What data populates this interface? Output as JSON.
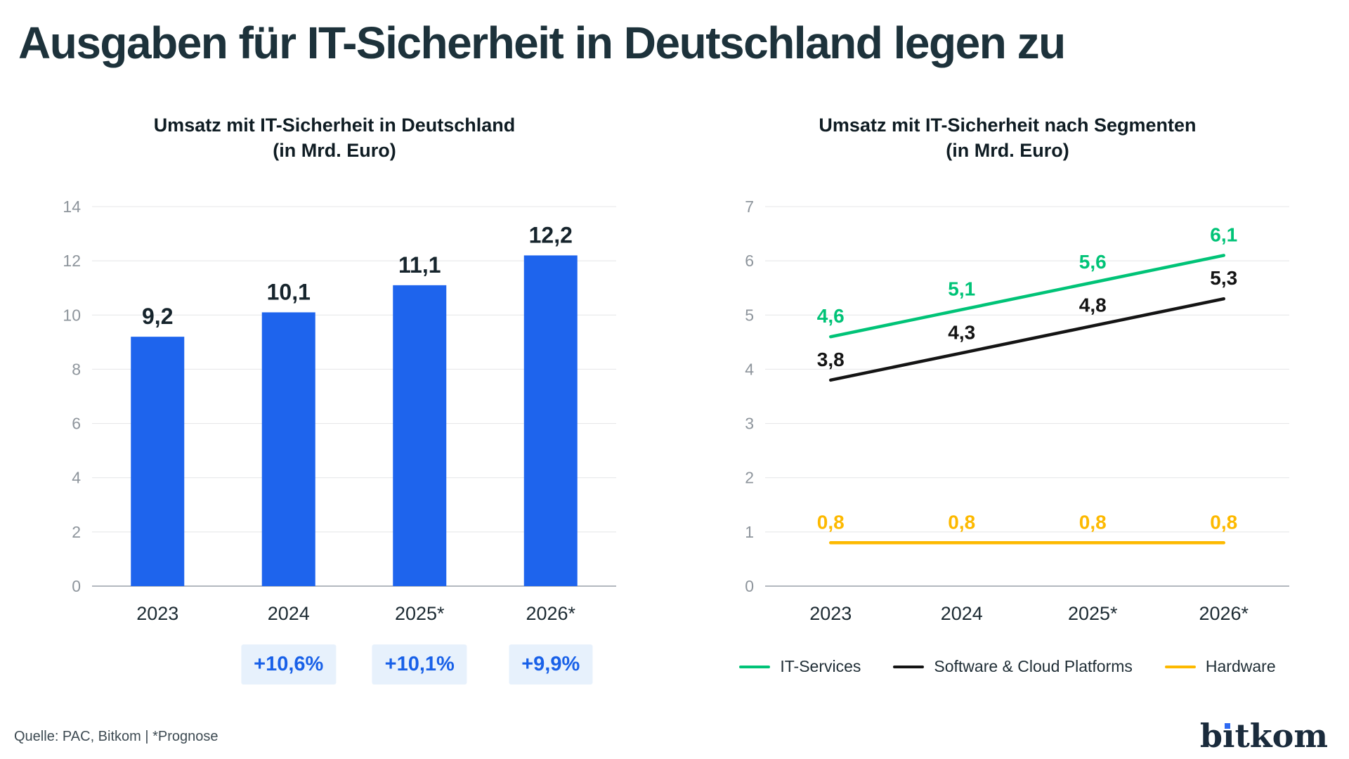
{
  "page": {
    "title": "Ausgaben für IT-Sicherheit in Deutschland legen zu",
    "source_note": "Quelle: PAC, Bitkom | *Prognose",
    "logo": {
      "label": "bitkom",
      "pre": "b",
      "i_stem": "ı",
      "post": "tkom"
    }
  },
  "colors": {
    "title_dark": "#1d323b",
    "text_dark": "#16242c",
    "axis_gray": "#8e959c",
    "grid": "#e4e5e7",
    "baseline": "#b3b8be",
    "bar_blue": "#1e64ed",
    "badge_bg": "#e7f1fc",
    "badge_text": "#1860e8",
    "it_services_green": "#00c377",
    "software_black": "#141414",
    "hardware_yellow": "#fdb900",
    "logo_navy": "#1a2b3c",
    "logo_dot_blue": "#2f6af2"
  },
  "chart_data": [
    {
      "type": "bar",
      "title": "Umsatz mit IT-Sicherheit in Deutschland",
      "subtitle": "(in Mrd. Euro)",
      "categories": [
        "2023",
        "2024",
        "2025*",
        "2026*"
      ],
      "values": [
        9.2,
        10.1,
        11.1,
        12.2
      ],
      "value_labels": [
        "9,2",
        "10,1",
        "11,1",
        "12,2"
      ],
      "growth_badges": [
        null,
        "+10,6%",
        "+10,1%",
        "+9,9%"
      ],
      "ylim": [
        0,
        14
      ],
      "yticks": [
        0,
        2,
        4,
        6,
        8,
        10,
        12,
        14
      ],
      "grid": true,
      "bar_color": "#1e64ed"
    },
    {
      "type": "line",
      "title": "Umsatz mit IT-Sicherheit nach Segmenten",
      "subtitle": "(in Mrd. Euro)",
      "categories": [
        "2023",
        "2024",
        "2025*",
        "2026*"
      ],
      "series": [
        {
          "name": "IT-Services",
          "color": "#00c377",
          "values": [
            4.6,
            5.1,
            5.6,
            6.1
          ],
          "labels": [
            "4,6",
            "5,1",
            "5,6",
            "6,1"
          ]
        },
        {
          "name": "Software & Cloud Platforms",
          "color": "#141414",
          "values": [
            3.8,
            4.3,
            4.8,
            5.3
          ],
          "labels": [
            "3,8",
            "4,3",
            "4,8",
            "5,3"
          ]
        },
        {
          "name": "Hardware",
          "color": "#fdb900",
          "values": [
            0.8,
            0.8,
            0.8,
            0.8
          ],
          "labels": [
            "0,8",
            "0,8",
            "0,8",
            "0,8"
          ]
        }
      ],
      "ylim": [
        0,
        7
      ],
      "yticks": [
        0,
        1,
        2,
        3,
        4,
        5,
        6,
        7
      ],
      "grid": true,
      "legend_position": "bottom"
    }
  ]
}
